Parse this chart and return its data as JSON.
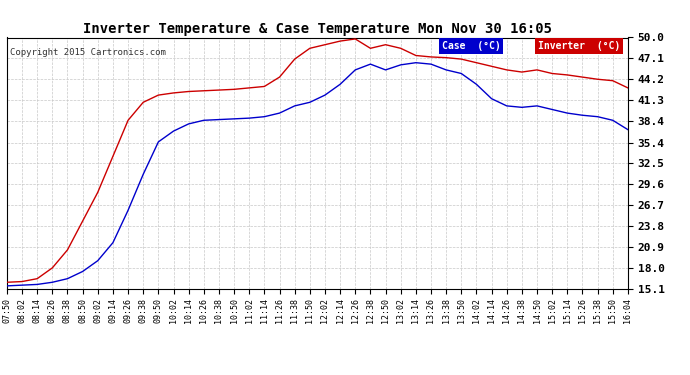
{
  "title": "Inverter Temperature & Case Temperature Mon Nov 30 16:05",
  "copyright": "Copyright 2015 Cartronics.com",
  "background_color": "#ffffff",
  "plot_bg_color": "#ffffff",
  "grid_color": "#c8c8c8",
  "yticks": [
    15.1,
    18.0,
    20.9,
    23.8,
    26.7,
    29.6,
    32.5,
    35.4,
    38.4,
    41.3,
    44.2,
    47.1,
    50.0
  ],
  "ylim": [
    15.1,
    50.0
  ],
  "legend": {
    "case_label": "Case  (°C)",
    "inverter_label": "Inverter  (°C)",
    "case_bg": "#0000cc",
    "inverter_bg": "#cc0000",
    "text_color": "#ffffff"
  },
  "case_color": "#0000cc",
  "inverter_color": "#cc0000",
  "xtick_labels": [
    "07:50",
    "08:02",
    "08:14",
    "08:26",
    "08:38",
    "08:50",
    "09:02",
    "09:14",
    "09:26",
    "09:38",
    "09:50",
    "10:02",
    "10:14",
    "10:26",
    "10:38",
    "10:50",
    "11:02",
    "11:14",
    "11:26",
    "11:38",
    "11:50",
    "12:02",
    "12:14",
    "12:26",
    "12:38",
    "12:50",
    "13:02",
    "13:14",
    "13:26",
    "13:38",
    "13:50",
    "14:02",
    "14:14",
    "14:26",
    "14:38",
    "14:50",
    "15:02",
    "15:14",
    "15:26",
    "15:38",
    "15:50",
    "16:04"
  ],
  "case_data": [
    15.5,
    15.6,
    15.7,
    16.0,
    16.5,
    17.5,
    19.0,
    21.5,
    26.0,
    31.0,
    35.5,
    37.0,
    38.0,
    38.5,
    38.6,
    38.7,
    38.8,
    39.0,
    39.5,
    40.5,
    41.0,
    42.0,
    43.5,
    45.5,
    46.3,
    45.5,
    46.2,
    46.5,
    46.3,
    45.5,
    45.0,
    43.5,
    41.5,
    40.5,
    40.3,
    40.5,
    40.0,
    39.5,
    39.2,
    39.0,
    38.5,
    37.2
  ],
  "inverter_data": [
    16.0,
    16.1,
    16.5,
    18.0,
    20.5,
    24.5,
    28.5,
    33.5,
    38.5,
    41.0,
    42.0,
    42.3,
    42.5,
    42.6,
    42.7,
    42.8,
    43.0,
    43.2,
    44.5,
    47.0,
    48.5,
    49.0,
    49.5,
    49.8,
    48.5,
    49.0,
    48.5,
    47.5,
    47.3,
    47.2,
    47.0,
    46.5,
    46.0,
    45.5,
    45.2,
    45.5,
    45.0,
    44.8,
    44.5,
    44.2,
    44.0,
    43.0
  ]
}
